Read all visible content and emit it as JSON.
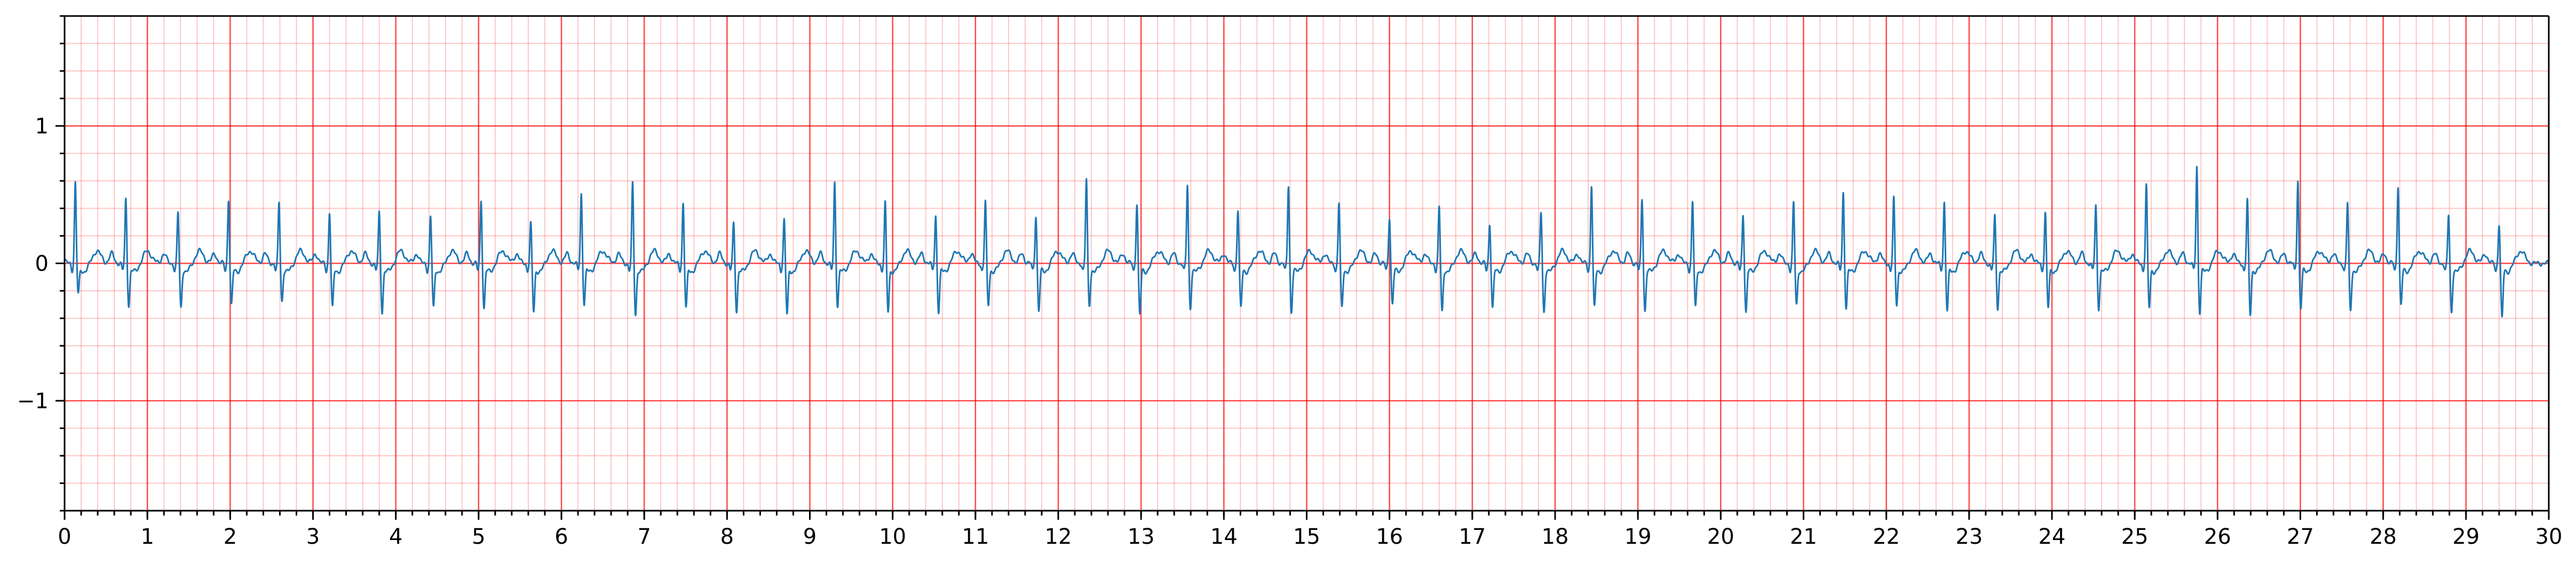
{
  "chart_data": {
    "type": "line",
    "title": "",
    "xlabel": "",
    "ylabel": "",
    "xlim": [
      0,
      30
    ],
    "ylim": [
      -1.8,
      1.8
    ],
    "x_ticks": [
      0,
      1,
      2,
      3,
      4,
      5,
      6,
      7,
      8,
      9,
      10,
      11,
      12,
      13,
      14,
      15,
      16,
      17,
      18,
      19,
      20,
      21,
      22,
      23,
      24,
      25,
      26,
      27,
      28,
      29,
      30
    ],
    "x_tick_labels": [
      "0",
      "1",
      "2",
      "3",
      "4",
      "5",
      "6",
      "7",
      "8",
      "9",
      "10",
      "11",
      "12",
      "13",
      "14",
      "15",
      "16",
      "17",
      "18",
      "19",
      "20",
      "21",
      "22",
      "23",
      "24",
      "25",
      "26",
      "27",
      "28",
      "29",
      "30"
    ],
    "y_ticks": [
      -1,
      0,
      1
    ],
    "y_tick_labels": [
      "−1",
      "0",
      "1"
    ],
    "grid": {
      "major_x": 1,
      "major_y": 1,
      "minor_x": 0.2,
      "minor_y": 0.2,
      "color": "#ff0000"
    },
    "series": [
      {
        "line_color": "#1f77b4",
        "beat_times": [
          0.13,
          0.74,
          1.37,
          1.98,
          2.59,
          3.2,
          3.8,
          4.42,
          5.03,
          5.63,
          6.24,
          6.86,
          7.47,
          8.08,
          8.69,
          9.3,
          9.91,
          10.52,
          11.12,
          11.73,
          12.34,
          12.95,
          13.56,
          14.17,
          14.78,
          15.39,
          16.0,
          16.6,
          17.21,
          17.83,
          18.44,
          19.05,
          19.66,
          20.27,
          20.88,
          21.48,
          22.09,
          22.7,
          23.31,
          23.92,
          24.53,
          25.14,
          25.75,
          26.36,
          26.97,
          27.57,
          28.18,
          28.79,
          29.4
        ],
        "r_amplitudes": [
          0.6,
          0.48,
          0.38,
          0.48,
          0.45,
          0.38,
          0.38,
          0.35,
          0.47,
          0.3,
          0.52,
          0.59,
          0.45,
          0.3,
          0.33,
          0.6,
          0.45,
          0.36,
          0.46,
          0.36,
          0.62,
          0.45,
          0.58,
          0.4,
          0.58,
          0.45,
          0.35,
          0.42,
          0.3,
          0.38,
          0.58,
          0.48,
          0.46,
          0.37,
          0.45,
          0.53,
          0.48,
          0.46,
          0.35,
          0.38,
          0.43,
          0.58,
          0.72,
          0.47,
          0.62,
          0.45,
          0.58,
          0.36,
          0.3
        ],
        "s_depths": [
          -0.2,
          -0.28,
          -0.3,
          -0.28,
          -0.25,
          -0.3,
          -0.33,
          -0.3,
          -0.3,
          -0.33,
          -0.27,
          -0.35,
          -0.3,
          -0.32,
          -0.35,
          -0.28,
          -0.33,
          -0.33,
          -0.28,
          -0.32,
          -0.28,
          -0.35,
          -0.3,
          -0.3,
          -0.33,
          -0.3,
          -0.27,
          -0.33,
          -0.3,
          -0.33,
          -0.3,
          -0.32,
          -0.3,
          -0.33,
          -0.28,
          -0.3,
          -0.28,
          -0.32,
          -0.3,
          -0.3,
          -0.3,
          -0.3,
          -0.33,
          -0.35,
          -0.3,
          -0.32,
          -0.28,
          -0.33,
          -0.38
        ]
      }
    ]
  }
}
